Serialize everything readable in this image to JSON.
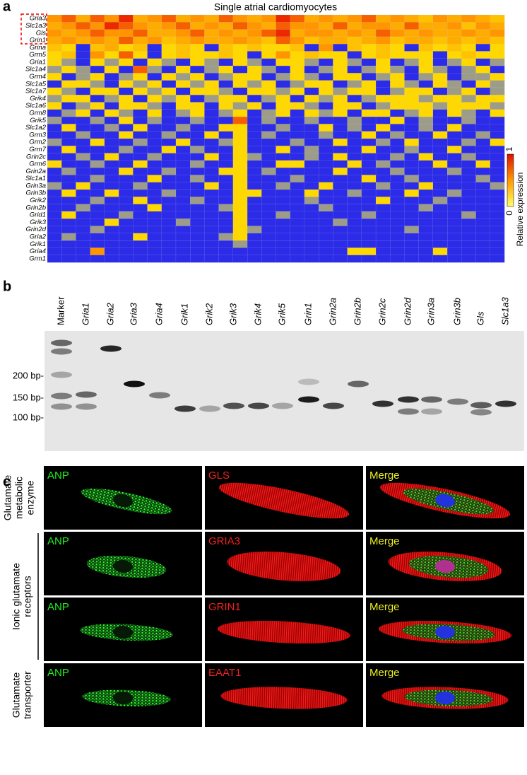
{
  "panel_a": {
    "label": "a",
    "title": "Single atrial cardiomyocytes",
    "genes": [
      "Gria3",
      "Slc1a3",
      "Gls",
      "Grin1",
      "Grina",
      "Grm5",
      "Gria1",
      "Slc1a4",
      "Grm4",
      "Slc1a5",
      "Slc1a7",
      "Grik4",
      "Slc1a6",
      "Grm8",
      "Grik5",
      "Slc1a2",
      "Grm3",
      "Grm2",
      "Grm7",
      "Grin2c",
      "Grm6",
      "Grin2a",
      "Slc1a1",
      "Grin3a",
      "Grin3b",
      "Grik2",
      "Grin2b",
      "Grid1",
      "Grik3",
      "Grin2d",
      "Gria2",
      "Grik1",
      "Gria4",
      "Grm1"
    ],
    "heatmap": [
      [
        0.8,
        0.9,
        0.7,
        0.9,
        0.8,
        1,
        0.7,
        0.8,
        0.9,
        0.7,
        0.8,
        0.7,
        0.9,
        0.8,
        0.7,
        0.8,
        1,
        0.9,
        0.7,
        0.8,
        0.7,
        0.8,
        0.9,
        0.7,
        0.8,
        0.7,
        0.6,
        0.8,
        0.7,
        0.8,
        0.7,
        0.6
      ],
      [
        0.7,
        0.8,
        0.9,
        0.8,
        1,
        0.9,
        0.8,
        0.7,
        0.8,
        0.9,
        0.7,
        0.8,
        0.7,
        0.9,
        0.8,
        0.7,
        0.9,
        0.8,
        0.8,
        0.7,
        0.9,
        0.7,
        0.8,
        0.8,
        0.7,
        0.9,
        0.7,
        0.7,
        0.8,
        0.6,
        0.8,
        0.7
      ],
      [
        0.8,
        0.7,
        0.8,
        0.9,
        0.8,
        0.8,
        0.9,
        0.7,
        0.7,
        0.8,
        0.9,
        0.7,
        0.8,
        0.7,
        0.8,
        0.9,
        1,
        0.7,
        0.8,
        0.8,
        0.7,
        0.8,
        0.7,
        0.9,
        0.8,
        0.7,
        0.8,
        0.7,
        0.7,
        0.8,
        0.7,
        0.8
      ],
      [
        0.7,
        0.8,
        0.7,
        0.8,
        0.7,
        0.9,
        0.7,
        0.8,
        0.6,
        0.7,
        0.8,
        0.7,
        0.7,
        0.8,
        0.7,
        0.6,
        0.9,
        0.8,
        0.6,
        0.7,
        0.7,
        0.6,
        0.7,
        0.8,
        0.6,
        0.7,
        0.7,
        0.6,
        0.7,
        0.6,
        0.7,
        0.6
      ],
      [
        0.6,
        0.5,
        0,
        0.6,
        0.7,
        0.5,
        0.6,
        0,
        0.5,
        0.6,
        0.5,
        0,
        0.6,
        0.5,
        0.6,
        0.5,
        0.5,
        0.6,
        0,
        0.8,
        0,
        0.6,
        0.5,
        0.6,
        0.5,
        0,
        0.6,
        0.5,
        0.6,
        0.5,
        0,
        0.5
      ],
      [
        0.5,
        0.6,
        0,
        0.8,
        0.5,
        0.9,
        0.5,
        0,
        0.5,
        0.6,
        0.5,
        0.5,
        0.6,
        0.5,
        0,
        0.5,
        0.8,
        0.5,
        0.6,
        0.5,
        0.5,
        0,
        0.5,
        0.6,
        0.5,
        0.5,
        0.5,
        0,
        0.5,
        0.6,
        0.5,
        0.5
      ],
      [
        0.5,
        0.2,
        0,
        0.5,
        0.2,
        0.5,
        0,
        0.5,
        0.2,
        0,
        0.5,
        0.2,
        0,
        0.5,
        0.2,
        0,
        0.5,
        0.5,
        0.2,
        0,
        0.5,
        0.2,
        0,
        0.5,
        0,
        0.2,
        0.5,
        0,
        0.2,
        0.5,
        0,
        0.2
      ],
      [
        0.2,
        0.5,
        0.2,
        0,
        0.5,
        0,
        0.9,
        0.2,
        0,
        0.5,
        0,
        0.2,
        0.5,
        0,
        0.5,
        0.2,
        0,
        0.5,
        0,
        0.2,
        0.5,
        0,
        0.2,
        0.5,
        0.2,
        0,
        0.5,
        0.2,
        0,
        0.2,
        0.5,
        0
      ],
      [
        0.5,
        0,
        0.2,
        0.5,
        0,
        0.2,
        0.5,
        0,
        0.5,
        0.2,
        0.5,
        0,
        0.2,
        0.5,
        0.5,
        0,
        0.2,
        0.5,
        0.2,
        0,
        0.5,
        0.5,
        0,
        0.2,
        0.5,
        0,
        0.2,
        0.5,
        0,
        0.2,
        0.2,
        0.5
      ],
      [
        0,
        0.5,
        0.5,
        0.2,
        0,
        0.5,
        0.2,
        0.5,
        0,
        0.5,
        0.2,
        0.5,
        0,
        0.5,
        0.2,
        0.5,
        0,
        0.2,
        0.5,
        0.5,
        0,
        0.2,
        0.5,
        0,
        0.5,
        0.2,
        0,
        0.5,
        0.2,
        0,
        0.5,
        0.2
      ],
      [
        0.5,
        0.2,
        0,
        0.5,
        0.5,
        0,
        0.5,
        0.2,
        0.5,
        0,
        0.5,
        0.5,
        0.2,
        0,
        0.5,
        0.5,
        0.2,
        0.5,
        0,
        0.5,
        0.2,
        0.5,
        0.5,
        0,
        0.2,
        0.5,
        0.5,
        0,
        0.2,
        0.5,
        0,
        0.2
      ],
      [
        0.2,
        0.5,
        0.5,
        0,
        0.2,
        0.5,
        0,
        0.5,
        0.2,
        0.5,
        0,
        0.2,
        0.5,
        0.5,
        0,
        0.2,
        0.5,
        0,
        0.5,
        0.2,
        0.5,
        0,
        0.2,
        0.5,
        0.5,
        0.5,
        0.2,
        0.5,
        0.5,
        0.2,
        0.5,
        0.5
      ],
      [
        0.5,
        0,
        0.2,
        0.5,
        0,
        0.5,
        0.5,
        0.2,
        0,
        0.5,
        0.5,
        0,
        0.5,
        0.2,
        0.5,
        0,
        0.5,
        0.5,
        0.2,
        0,
        0.5,
        0.5,
        0,
        0.2,
        0.5,
        0.5,
        0.5,
        0.2,
        0.5,
        0.5,
        0.5,
        0.2
      ],
      [
        0,
        0.2,
        0.5,
        0,
        0.5,
        0.2,
        0,
        0.5,
        0,
        0.2,
        0.5,
        0,
        0.2,
        0.5,
        0,
        0.2,
        0.5,
        0,
        0.5,
        0.2,
        0.5,
        0,
        0.5,
        0.5,
        0,
        0.2,
        0.5,
        0,
        0.5,
        0.2,
        0,
        0.5
      ],
      [
        0.2,
        0,
        0,
        0.2,
        0,
        0.5,
        0,
        0.2,
        0,
        0,
        0.2,
        0,
        0,
        0.9,
        0,
        0.2,
        0,
        0,
        0.2,
        0,
        0,
        0.2,
        0,
        0,
        0.5,
        0,
        0.2,
        0,
        0,
        0.2,
        0,
        0
      ],
      [
        0,
        0.5,
        0,
        0,
        0.2,
        0,
        0.5,
        0,
        0,
        0.2,
        0,
        0,
        0.5,
        0.5,
        0,
        0,
        0.2,
        0,
        0,
        0.5,
        0,
        0.2,
        0,
        0.5,
        0,
        0,
        0.2,
        0,
        0.5,
        0,
        0,
        0
      ],
      [
        0,
        0,
        0.2,
        0,
        0,
        0.5,
        0,
        0,
        0.2,
        0,
        0,
        0.5,
        0,
        0.5,
        0,
        0.2,
        0,
        0,
        0,
        0.2,
        0,
        0,
        0.5,
        0,
        0.2,
        0,
        0,
        0.5,
        0,
        0,
        0.2,
        0
      ],
      [
        0.2,
        0,
        0,
        0.5,
        0,
        0,
        0.2,
        0,
        0,
        0.5,
        0,
        0,
        0.2,
        0.5,
        0,
        0,
        0,
        0.2,
        0,
        0,
        0.5,
        0,
        0,
        0.2,
        0,
        0.5,
        0,
        0,
        0,
        0.2,
        0,
        0.5
      ],
      [
        0,
        0.5,
        0,
        0,
        0,
        0.2,
        0,
        0,
        0.5,
        0,
        0.2,
        0,
        0,
        0.5,
        0,
        0,
        0.5,
        0,
        0.2,
        0,
        0,
        0,
        0.5,
        0,
        0,
        0.2,
        0,
        0,
        0.5,
        0,
        0,
        0
      ],
      [
        0,
        0,
        0.2,
        0,
        0.5,
        0,
        0,
        0.2,
        0,
        0,
        0,
        0.5,
        0,
        0.5,
        0.2,
        0,
        0,
        0,
        0.2,
        0,
        0.5,
        0,
        0,
        0,
        0.2,
        0,
        0.5,
        0,
        0,
        0.2,
        0,
        0
      ],
      [
        0.5,
        0,
        0,
        0.2,
        0,
        0,
        0.5,
        0,
        0,
        0,
        0.2,
        0,
        0,
        0.5,
        0,
        0,
        0.5,
        0.5,
        0,
        0,
        0,
        0.5,
        0,
        0.2,
        0,
        0,
        0,
        0.5,
        0,
        0,
        0.5,
        0
      ],
      [
        0,
        0.2,
        0,
        0,
        0,
        0.5,
        0,
        0,
        0.2,
        0,
        0,
        0,
        0.5,
        0.5,
        0,
        0.2,
        0,
        0,
        0,
        0,
        0.5,
        0,
        0,
        0,
        0.2,
        0,
        0,
        0,
        0.2,
        0,
        0,
        0
      ],
      [
        0,
        0,
        0,
        0.2,
        0,
        0,
        0,
        0.5,
        0,
        0,
        0.2,
        0,
        0,
        0.5,
        0,
        0,
        0,
        0.2,
        0,
        0,
        0,
        0,
        0.5,
        0,
        0,
        0.2,
        0,
        0,
        0,
        0,
        0.2,
        0
      ],
      [
        0.2,
        0,
        0.5,
        0,
        0,
        0,
        0.2,
        0,
        0,
        0,
        0,
        0.5,
        0,
        0.5,
        0,
        0,
        0.2,
        0,
        0,
        0.5,
        0,
        0,
        0,
        0.2,
        0,
        0,
        0.5,
        0,
        0,
        0,
        0,
        0.2
      ],
      [
        0,
        0.5,
        0,
        0,
        0.5,
        0,
        0,
        0,
        0.2,
        0,
        0,
        0,
        0,
        0.5,
        0.5,
        0,
        0,
        0,
        0.5,
        0,
        0,
        0.2,
        0,
        0,
        0,
        0.5,
        0,
        0,
        0.2,
        0,
        0,
        0
      ],
      [
        0,
        0,
        0,
        0.2,
        0,
        0,
        0.5,
        0,
        0,
        0,
        0.2,
        0,
        0,
        0.5,
        0,
        0,
        0,
        0,
        0.2,
        0,
        0,
        0,
        0,
        0.5,
        0,
        0,
        0,
        0.2,
        0,
        0,
        0,
        0
      ],
      [
        0,
        0,
        0.2,
        0,
        0,
        0,
        0,
        0.5,
        0,
        0,
        0,
        0,
        0.2,
        0.5,
        0,
        0,
        0,
        0,
        0,
        0.2,
        0,
        0,
        0,
        0,
        0,
        0,
        0.2,
        0,
        0,
        0,
        0,
        0
      ],
      [
        0,
        0.5,
        0,
        0,
        0,
        0.2,
        0,
        0,
        0,
        0,
        0,
        0,
        0,
        0.5,
        0,
        0,
        0.2,
        0,
        0,
        0,
        0,
        0,
        0.2,
        0,
        0,
        0,
        0,
        0,
        0,
        0.2,
        0,
        0
      ],
      [
        0,
        0,
        0,
        0,
        0.5,
        0,
        0,
        0,
        0,
        0.2,
        0,
        0,
        0,
        0.5,
        0,
        0,
        0,
        0,
        0,
        0,
        0.2,
        0,
        0,
        0,
        0,
        0,
        0,
        0,
        0,
        0,
        0,
        0
      ],
      [
        0,
        0,
        0,
        0.2,
        0,
        0,
        0,
        0,
        0,
        0,
        0,
        0,
        0,
        0.5,
        0.2,
        0,
        0,
        0,
        0,
        0,
        0,
        0,
        0,
        0,
        0,
        0.2,
        0,
        0,
        0,
        0,
        0,
        0
      ],
      [
        0,
        0.2,
        0,
        0,
        0,
        0,
        0.5,
        0,
        0,
        0,
        0,
        0,
        0.2,
        0.5,
        0,
        0,
        0,
        0,
        0,
        0,
        0,
        0,
        0,
        0,
        0,
        0,
        0,
        0,
        0,
        0,
        0,
        0
      ],
      [
        0,
        0,
        0,
        0,
        0,
        0,
        0,
        0,
        0,
        0,
        0,
        0,
        0,
        0.2,
        0,
        0,
        0,
        0,
        0,
        0,
        0,
        0,
        0,
        0,
        0,
        0,
        0,
        0,
        0,
        0,
        0,
        0
      ],
      [
        0,
        0,
        0,
        0.8,
        0,
        0,
        0,
        0,
        0,
        0,
        0,
        0,
        0,
        0,
        0,
        0,
        0,
        0,
        0,
        0,
        0,
        0.5,
        0.5,
        0,
        0,
        0,
        0,
        0.5,
        0,
        0,
        0,
        0
      ],
      [
        0,
        0,
        0,
        0,
        0,
        0,
        0,
        0,
        0,
        0,
        0,
        0,
        0,
        0,
        0,
        0,
        0,
        0,
        0,
        0,
        0,
        0,
        0,
        0,
        0,
        0,
        0,
        0,
        0,
        0,
        0,
        0
      ]
    ],
    "colorbar": {
      "min": 0,
      "max": 1,
      "label": "Relative expression"
    }
  },
  "panel_b": {
    "label": "b",
    "lanes": [
      "Marker",
      "Gria1",
      "Gria2",
      "Gria3",
      "Gria4",
      "Grik1",
      "Grik2",
      "Grik3",
      "Grik4",
      "Grik5",
      "Grin1",
      "Grin2a",
      "Grin2b",
      "Grin2c",
      "Grin2d",
      "Grin3a",
      "Grin3b",
      "Gls",
      "Slc1a3"
    ],
    "sizes": [
      "200 bp-",
      "150 bp-",
      "100 bp-"
    ]
  },
  "panel_c": {
    "label": "c",
    "rows": [
      [
        "ANP",
        "GLS",
        "Merge"
      ],
      [
        "ANP",
        "GRIA3",
        "Merge"
      ],
      [
        "ANP",
        "GRIN1",
        "Merge"
      ],
      [
        "ANP",
        "EAAT1",
        "Merge"
      ]
    ],
    "groups": [
      [
        "Glutamate",
        "metabolic",
        "enzyme"
      ],
      [
        "Ionic glutamate",
        "receptors"
      ],
      [
        "Glutamate",
        "transporter"
      ]
    ]
  }
}
